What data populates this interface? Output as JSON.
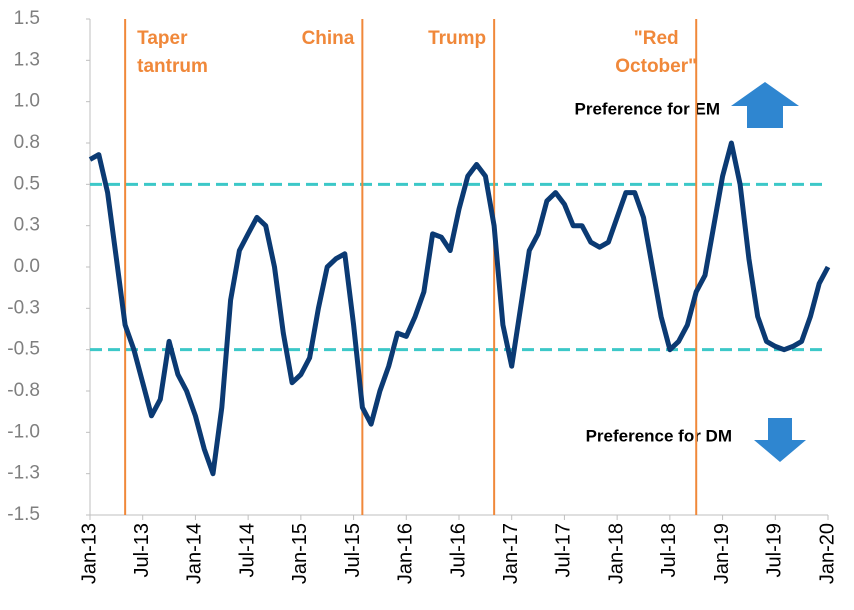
{
  "chart_data": {
    "type": "line",
    "x": [
      "Jan-13",
      "Feb-13",
      "Mar-13",
      "Apr-13",
      "May-13",
      "Jun-13",
      "Jul-13",
      "Aug-13",
      "Sep-13",
      "Oct-13",
      "Nov-13",
      "Dec-13",
      "Jan-14",
      "Feb-14",
      "Mar-14",
      "Apr-14",
      "May-14",
      "Jun-14",
      "Jul-14",
      "Aug-14",
      "Sep-14",
      "Oct-14",
      "Nov-14",
      "Dec-14",
      "Jan-15",
      "Feb-15",
      "Mar-15",
      "Apr-15",
      "May-15",
      "Jun-15",
      "Jul-15",
      "Aug-15",
      "Sep-15",
      "Oct-15",
      "Nov-15",
      "Dec-15",
      "Jan-16",
      "Feb-16",
      "Mar-16",
      "Apr-16",
      "May-16",
      "Jun-16",
      "Jul-16",
      "Aug-16",
      "Sep-16",
      "Oct-16",
      "Nov-16",
      "Dec-16",
      "Jan-17",
      "Feb-17",
      "Mar-17",
      "Apr-17",
      "May-17",
      "Jun-17",
      "Jul-17",
      "Aug-17",
      "Sep-17",
      "Oct-17",
      "Nov-17",
      "Dec-17",
      "Jan-18",
      "Feb-18",
      "Mar-18",
      "Apr-18",
      "May-18",
      "Jun-18",
      "Jul-18",
      "Aug-18",
      "Sep-18",
      "Oct-18",
      "Nov-18",
      "Dec-18",
      "Jan-19",
      "Feb-19",
      "Mar-19",
      "Apr-19",
      "May-19",
      "Jun-19",
      "Jul-19",
      "Aug-19",
      "Sep-19",
      "Oct-19",
      "Nov-19",
      "Dec-19",
      "Jan-20"
    ],
    "series": [
      {
        "color": "#0b3a73",
        "values": [
          0.65,
          0.68,
          0.45,
          0.05,
          -0.35,
          -0.5,
          -0.7,
          -0.9,
          -0.8,
          -0.45,
          -0.65,
          -0.75,
          -0.9,
          -1.1,
          -1.25,
          -0.85,
          -0.2,
          0.1,
          0.2,
          0.3,
          0.25,
          0.0,
          -0.4,
          -0.7,
          -0.65,
          -0.55,
          -0.25,
          0.0,
          0.05,
          0.08,
          -0.35,
          -0.85,
          -0.95,
          -0.75,
          -0.6,
          -0.4,
          -0.42,
          -0.3,
          -0.15,
          0.2,
          0.18,
          0.1,
          0.35,
          0.55,
          0.62,
          0.55,
          0.25,
          -0.35,
          -0.6,
          -0.25,
          0.1,
          0.2,
          0.4,
          0.45,
          0.38,
          0.25,
          0.25,
          0.15,
          0.12,
          0.15,
          0.3,
          0.45,
          0.45,
          0.3,
          0.0,
          -0.3,
          -0.5,
          -0.45,
          -0.35,
          -0.15,
          -0.05,
          0.25,
          0.55,
          0.75,
          0.5,
          0.05,
          -0.3,
          -0.45,
          -0.48,
          -0.5,
          -0.48,
          -0.45,
          -0.3,
          -0.1,
          0.0
        ]
      }
    ],
    "ylim": [
      -1.5,
      1.5
    ],
    "yticks": [
      -1.5,
      {
        "value": -1.25,
        "label": "-1.3"
      },
      {
        "value": -1.0,
        "label": "-1.0"
      },
      {
        "value": -0.75,
        "label": "-0.8"
      },
      -0.5,
      {
        "value": -0.25,
        "label": "-0.3"
      },
      {
        "value": 0,
        "label": "0.0"
      },
      {
        "value": 0.25,
        "label": "0.3"
      },
      0.5,
      {
        "value": 0.75,
        "label": "0.8"
      },
      {
        "value": 1.0,
        "label": "1.0"
      },
      {
        "value": 1.25,
        "label": "1.3"
      },
      1.5
    ],
    "xticks": [
      "Jan-13",
      "Jul-13",
      "Jan-14",
      "Jul-14",
      "Jan-15",
      "Jul-15",
      "Jan-16",
      "Jul-16",
      "Jan-17",
      "Jul-17",
      "Jan-18",
      "Jul-18",
      "Jan-19",
      "Jul-19",
      "Jan-20"
    ],
    "hlines": [
      0.5,
      -0.5
    ],
    "hline_color": "#3cc8c8",
    "events": [
      {
        "x": "May-13",
        "lines": [
          "Taper",
          "tantrum"
        ],
        "label_side": "right"
      },
      {
        "x": "Aug-15",
        "lines": [
          "China"
        ],
        "label_side": "left"
      },
      {
        "x": "Nov-16",
        "lines": [
          "Trump"
        ],
        "label_side": "left"
      },
      {
        "x": "Oct-18",
        "lines": [
          "\"Red",
          "October\""
        ],
        "label_side": "left"
      }
    ],
    "event_color": "#f0883a",
    "annotations": [
      "Preference for EM",
      "Preference for DM"
    ]
  }
}
